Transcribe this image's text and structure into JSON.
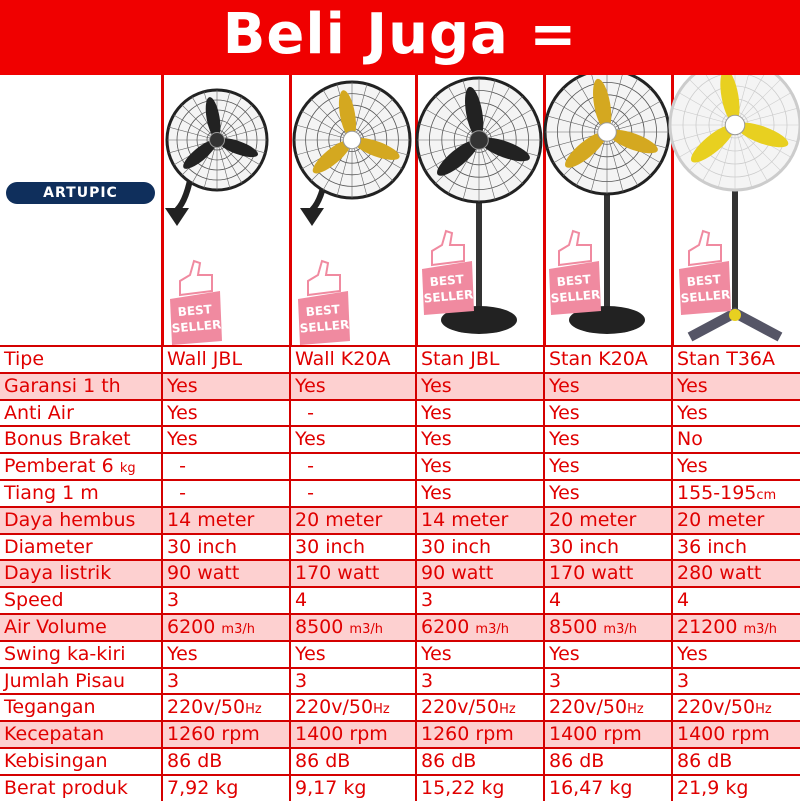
{
  "banner": {
    "title": "Beli Juga ="
  },
  "brand": {
    "badge": "ARTUPIC"
  },
  "best_seller": {
    "line1": "BEST",
    "line2": "SELLER"
  },
  "colors": {
    "banner": "#f00000",
    "text": "#e00000",
    "shade": "#fdd0d0",
    "badge": "#0f2f5c",
    "best_seller": "#f08aa0"
  },
  "rows": [
    {
      "shade": false,
      "cells": [
        {
          "v": "Tipe"
        },
        {
          "v": "Wall JBL"
        },
        {
          "v": "Wall K20A"
        },
        {
          "v": "Stan JBL"
        },
        {
          "v": "Stan K20A"
        },
        {
          "v": "Stan T36A"
        }
      ]
    },
    {
      "shade": true,
      "cells": [
        {
          "v": "Garansi 1 th"
        },
        {
          "v": "Yes"
        },
        {
          "v": "Yes"
        },
        {
          "v": "Yes"
        },
        {
          "v": "Yes"
        },
        {
          "v": "Yes"
        }
      ]
    },
    {
      "shade": false,
      "cells": [
        {
          "v": "Anti Air"
        },
        {
          "v": "Yes"
        },
        {
          "v": "  -"
        },
        {
          "v": "Yes"
        },
        {
          "v": "Yes"
        },
        {
          "v": "Yes"
        }
      ]
    },
    {
      "shade": false,
      "cells": [
        {
          "v": "Bonus Braket"
        },
        {
          "v": "Yes"
        },
        {
          "v": "Yes"
        },
        {
          "v": "Yes"
        },
        {
          "v": "Yes"
        },
        {
          "v": "No"
        }
      ]
    },
    {
      "shade": false,
      "cells": [
        {
          "v": "Pemberat 6 ",
          "u": "kg"
        },
        {
          "v": "  -"
        },
        {
          "v": "  -"
        },
        {
          "v": "Yes"
        },
        {
          "v": "Yes"
        },
        {
          "v": "Yes"
        }
      ]
    },
    {
      "shade": false,
      "cells": [
        {
          "v": "Tiang 1 m"
        },
        {
          "v": "  -"
        },
        {
          "v": "  -"
        },
        {
          "v": "Yes"
        },
        {
          "v": "Yes"
        },
        {
          "v": "155-195",
          "u": "cm"
        }
      ]
    },
    {
      "shade": true,
      "cells": [
        {
          "v": "Daya hembus"
        },
        {
          "v": "14 meter"
        },
        {
          "v": "20 meter"
        },
        {
          "v": "14 meter"
        },
        {
          "v": "20 meter"
        },
        {
          "v": "20 meter"
        }
      ]
    },
    {
      "shade": false,
      "cells": [
        {
          "v": "Diameter"
        },
        {
          "v": "30 inch"
        },
        {
          "v": "30 inch"
        },
        {
          "v": "30 inch"
        },
        {
          "v": "30 inch"
        },
        {
          "v": "36 inch"
        }
      ]
    },
    {
      "shade": true,
      "cells": [
        {
          "v": "Daya listrik"
        },
        {
          "v": "90 watt"
        },
        {
          "v": "170 watt"
        },
        {
          "v": "90 watt"
        },
        {
          "v": "170 watt"
        },
        {
          "v": "280 watt"
        }
      ]
    },
    {
      "shade": false,
      "cells": [
        {
          "v": "Speed"
        },
        {
          "v": "3"
        },
        {
          "v": "4"
        },
        {
          "v": "3"
        },
        {
          "v": "4"
        },
        {
          "v": "4"
        }
      ]
    },
    {
      "shade": true,
      "cells": [
        {
          "v": "Air Volume"
        },
        {
          "v": "6200 ",
          "u": "m3/h"
        },
        {
          "v": "8500 ",
          "u": "m3/h"
        },
        {
          "v": "6200 ",
          "u": "m3/h"
        },
        {
          "v": "8500 ",
          "u": "m3/h"
        },
        {
          "v": "21200 ",
          "u": "m3/h"
        }
      ]
    },
    {
      "shade": false,
      "cells": [
        {
          "v": "Swing ka-kiri"
        },
        {
          "v": "Yes"
        },
        {
          "v": "Yes"
        },
        {
          "v": "Yes"
        },
        {
          "v": "Yes"
        },
        {
          "v": "Yes"
        }
      ]
    },
    {
      "shade": false,
      "cells": [
        {
          "v": "Jumlah Pisau"
        },
        {
          "v": "3"
        },
        {
          "v": "3"
        },
        {
          "v": "3"
        },
        {
          "v": "3"
        },
        {
          "v": "3"
        }
      ]
    },
    {
      "shade": false,
      "cells": [
        {
          "v": "Tegangan"
        },
        {
          "v": "220v/50",
          "u": "Hz"
        },
        {
          "v": "220v/50",
          "u": "Hz"
        },
        {
          "v": "220v/50",
          "u": "Hz"
        },
        {
          "v": "220v/50",
          "u": "Hz"
        },
        {
          "v": "220v/50",
          "u": "Hz"
        }
      ]
    },
    {
      "shade": true,
      "cells": [
        {
          "v": "Kecepatan"
        },
        {
          "v": "1260 rpm"
        },
        {
          "v": "1400 rpm"
        },
        {
          "v": "1260 rpm"
        },
        {
          "v": "1400 rpm"
        },
        {
          "v": "1400 rpm"
        }
      ]
    },
    {
      "shade": false,
      "cells": [
        {
          "v": "Kebisingan"
        },
        {
          "v": "86 dB"
        },
        {
          "v": "86 dB"
        },
        {
          "v": "86 dB"
        },
        {
          "v": "86 dB"
        },
        {
          "v": "86 dB"
        }
      ]
    },
    {
      "shade": false,
      "cells": [
        {
          "v": "Berat produk"
        },
        {
          "v": "7,92 kg"
        },
        {
          "v": "9,17 kg"
        },
        {
          "v": "15,22 kg"
        },
        {
          "v": "16,47 kg"
        },
        {
          "v": "21,9 kg"
        }
      ]
    }
  ]
}
